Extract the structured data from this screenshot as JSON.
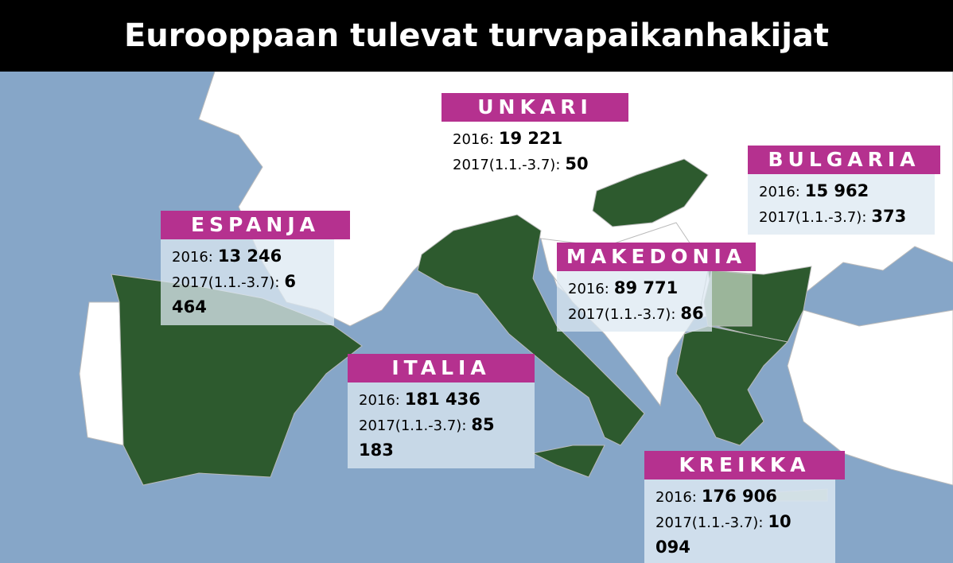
{
  "title": "Eurooppaan tulevat turvapaikanhakijat",
  "countries": [
    {
      "name": "UNKARI",
      "rows": [
        {
          "label": "2016:",
          "value": "19 221"
        },
        {
          "label": "2017(1.1.-3.7):",
          "value": "50"
        }
      ]
    },
    {
      "name": "BULGARIA",
      "rows": [
        {
          "label": "2016:",
          "value": "15 962"
        },
        {
          "label": "2017(1.1.-3.7):",
          "value": "373"
        }
      ]
    },
    {
      "name": "ESPANJA",
      "rows": [
        {
          "label": "2016:",
          "value": "13 246"
        },
        {
          "label": "2017(1.1.-3.7):",
          "value": "6 464"
        }
      ]
    },
    {
      "name": "MAKEDONIA",
      "rows": [
        {
          "label": "2016:",
          "value": "89 771"
        },
        {
          "label": "2017(1.1.-3.7):",
          "value": "86"
        }
      ]
    },
    {
      "name": "ITALIA",
      "rows": [
        {
          "label": "2016:",
          "value": "181 436"
        },
        {
          "label": "2017(1.1.-3.7):",
          "value": "85 183"
        }
      ]
    },
    {
      "name": "KREIKKA",
      "rows": [
        {
          "label": "2016:",
          "value": "176 906"
        },
        {
          "label": "2017(1.1.-3.7):",
          "value": "10 094"
        }
      ]
    }
  ]
}
